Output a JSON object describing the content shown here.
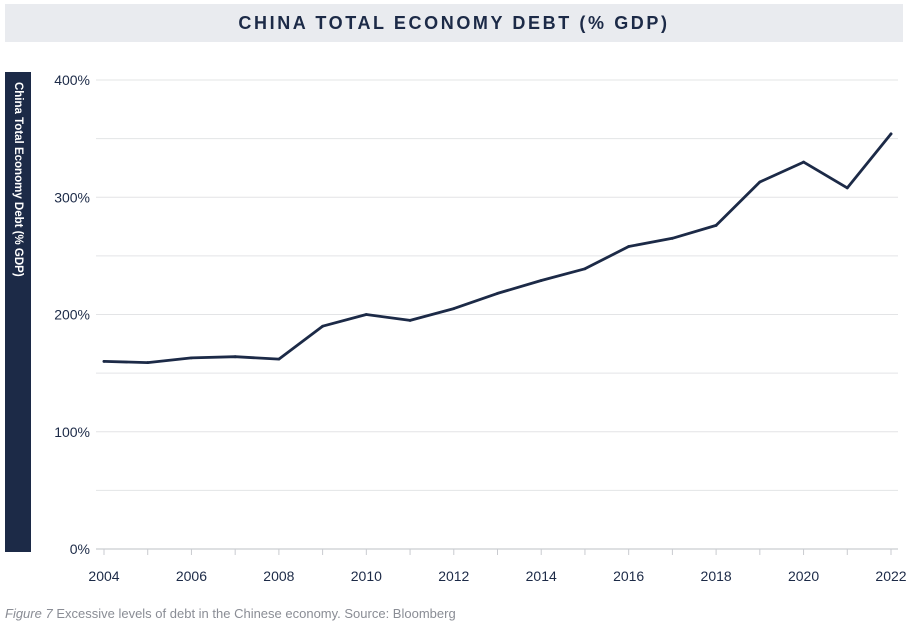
{
  "chart_data": {
    "type": "line",
    "title": "CHINA TOTAL ECONOMY DEBT (% GDP)",
    "ylabel": "China Total Economy Debt (% GDP)",
    "xlabel": "",
    "x": [
      2004,
      2005,
      2006,
      2007,
      2008,
      2009,
      2010,
      2011,
      2012,
      2013,
      2014,
      2015,
      2016,
      2017,
      2018,
      2019,
      2020,
      2021,
      2022
    ],
    "series": [
      {
        "name": "China Total Economy Debt (% GDP)",
        "color": "#1c2a47",
        "values": [
          160,
          159,
          163,
          164,
          162,
          190,
          200,
          195,
          205,
          218,
          229,
          239,
          258,
          265,
          276,
          313,
          330,
          308,
          354
        ]
      }
    ],
    "xlim": [
      2004,
      2022
    ],
    "ylim": [
      0,
      400
    ],
    "yticks": [
      0,
      100,
      200,
      300,
      400
    ],
    "ytick_labels": [
      "0%",
      "100%",
      "200%",
      "300%",
      "400%"
    ],
    "xticks": [
      2004,
      2006,
      2008,
      2010,
      2012,
      2014,
      2016,
      2018,
      2020,
      2022
    ],
    "xtick_labels": [
      "2004",
      "2006",
      "2008",
      "2010",
      "2012",
      "2014",
      "2016",
      "2018",
      "2020",
      "2022"
    ],
    "grid": true
  },
  "caption": {
    "figure_label": "Figure 7",
    "text": " Excessive levels of debt in the Chinese economy. Source: Bloomberg"
  },
  "colors": {
    "primary": "#1c2a47",
    "title_bg": "#e9ebef",
    "grid": "#e3e4e6",
    "tick_text": "#1c2a47",
    "caption": "#8a8d95"
  }
}
